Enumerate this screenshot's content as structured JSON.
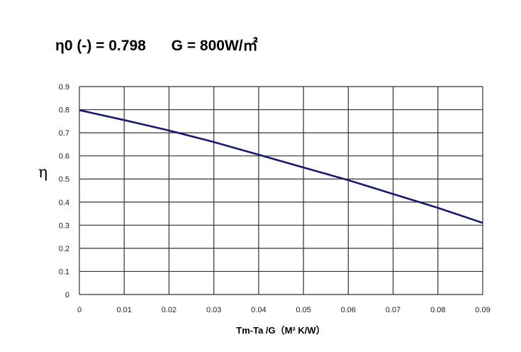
{
  "header": {
    "eta0": "η0 (-) = 0.798",
    "irradiance": "G = 800W/㎡"
  },
  "chart_data": {
    "type": "line",
    "title": "",
    "xlabel": "Tm-Ta /G（M² K/W）",
    "ylabel": "η",
    "xlim": [
      0,
      0.09
    ],
    "ylim": [
      0,
      0.9
    ],
    "grid": true,
    "x_ticks": [
      "0",
      "0.01",
      "0.02",
      "0.03",
      "0.04",
      "0.05",
      "0.06",
      "0.07",
      "0.08",
      "0.09"
    ],
    "y_ticks": [
      "0",
      "0.1",
      "0.2",
      "0.3",
      "0.4",
      "0.5",
      "0.6",
      "0.7",
      "0.8",
      "0.9"
    ],
    "series": [
      {
        "color": "#1a1a66",
        "x": [
          0,
          0.01,
          0.02,
          0.03,
          0.04,
          0.05,
          0.06,
          0.07,
          0.08,
          0.09
        ],
        "y": [
          0.798,
          0.755,
          0.71,
          0.66,
          0.605,
          0.55,
          0.495,
          0.435,
          0.375,
          0.31
        ]
      }
    ]
  }
}
